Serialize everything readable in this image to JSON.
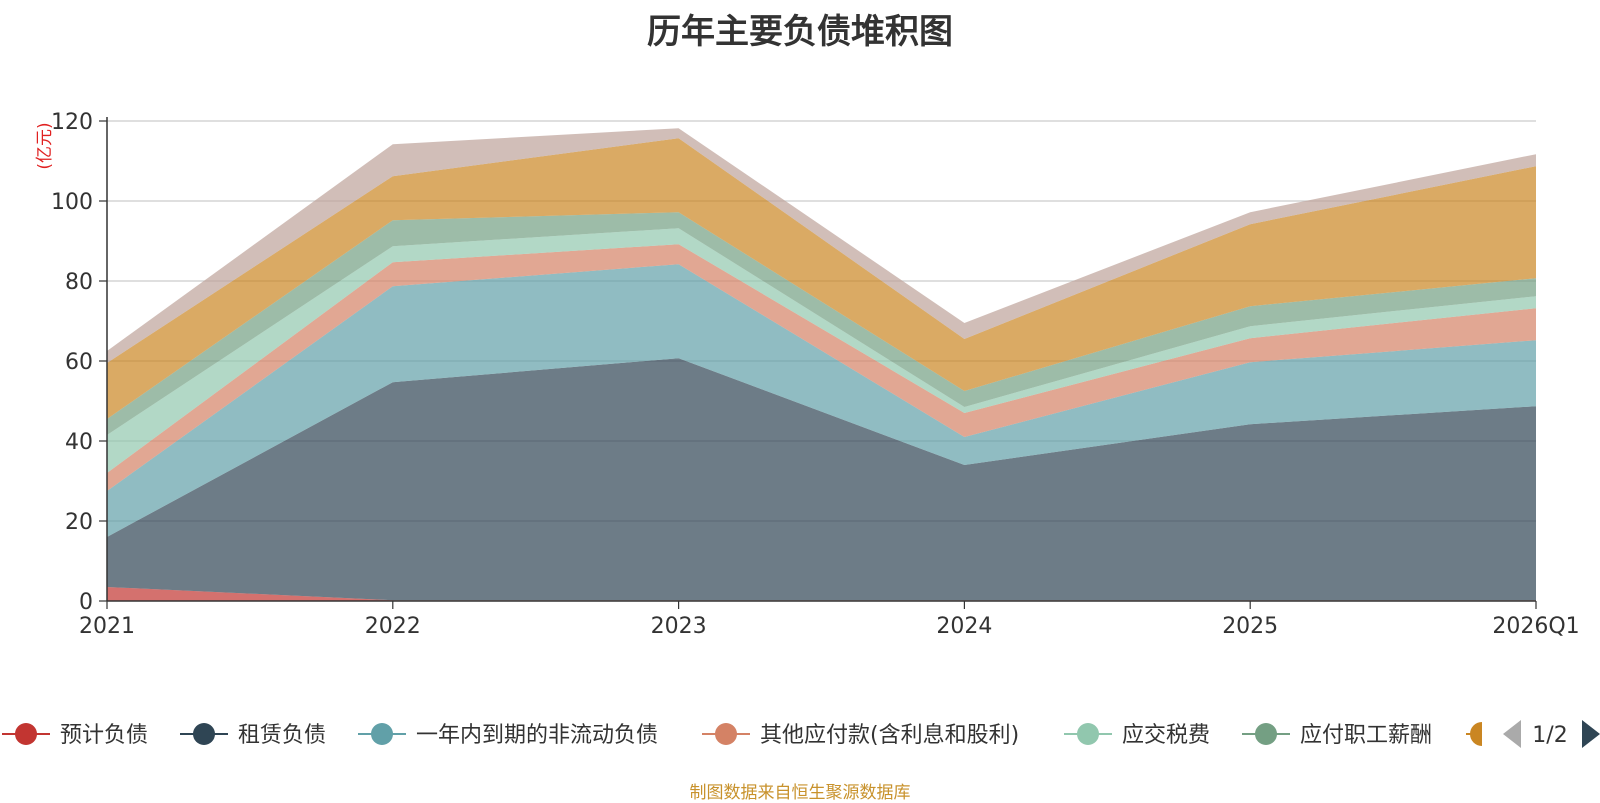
{
  "chart_data": {
    "type": "area",
    "title": "历年主要负债堆积图",
    "yunit": "(亿元)",
    "x": [
      "2021",
      "2022",
      "2023",
      "2024",
      "2025",
      "2026Q1"
    ],
    "ylim": [
      0,
      120
    ],
    "yticks": [
      0,
      20,
      40,
      60,
      80,
      100,
      120
    ],
    "grid": true,
    "stacked": true,
    "series": [
      {
        "name": "预计负债",
        "color": "#c23531",
        "values": [
          3.5,
          0.2,
          0.2,
          0.2,
          0.2,
          0.2
        ]
      },
      {
        "name": "租赁负债",
        "color": "#2f4554",
        "values": [
          12.5,
          54.5,
          60.5,
          33.8,
          44,
          48.5
        ]
      },
      {
        "name": "一年内到期的非流动负债",
        "color": "#61a0a8",
        "values": [
          11.5,
          24,
          23.5,
          7,
          15.5,
          16.5
        ]
      },
      {
        "name": "其他应付款(含利息和股利)",
        "color": "#d48265",
        "values": [
          4.5,
          6,
          5,
          6,
          6,
          8
        ]
      },
      {
        "name": "应交税费",
        "color": "#91c7ae",
        "values": [
          9.5,
          4,
          4,
          1.5,
          3,
          3
        ]
      },
      {
        "name": "应付职工薪酬",
        "color": "#749f83",
        "values": [
          4,
          6.5,
          4,
          4,
          5,
          4.5
        ]
      },
      {
        "name": "",
        "color": "#ca8622",
        "values": [
          14,
          11,
          18.5,
          13,
          20.5,
          28
        ]
      },
      {
        "name": "",
        "color": "#bda29a",
        "values": [
          3,
          8,
          2.5,
          4,
          3,
          3
        ]
      }
    ],
    "legend": {
      "placement": "bottom",
      "page": "1/2"
    }
  },
  "source_note": "制图数据来自恒生聚源数据库"
}
